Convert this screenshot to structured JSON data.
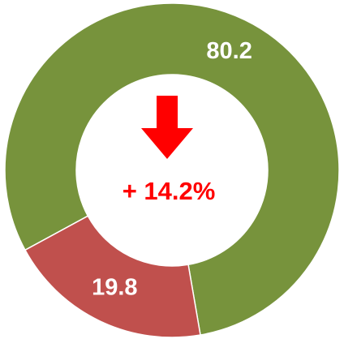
{
  "chart_data": {
    "type": "donut",
    "values": [
      80.2,
      19.8
    ],
    "colors": [
      "#77933c",
      "#c0504d"
    ],
    "annotation": "+ 14.2%",
    "annotation_color": "#ff0000"
  }
}
